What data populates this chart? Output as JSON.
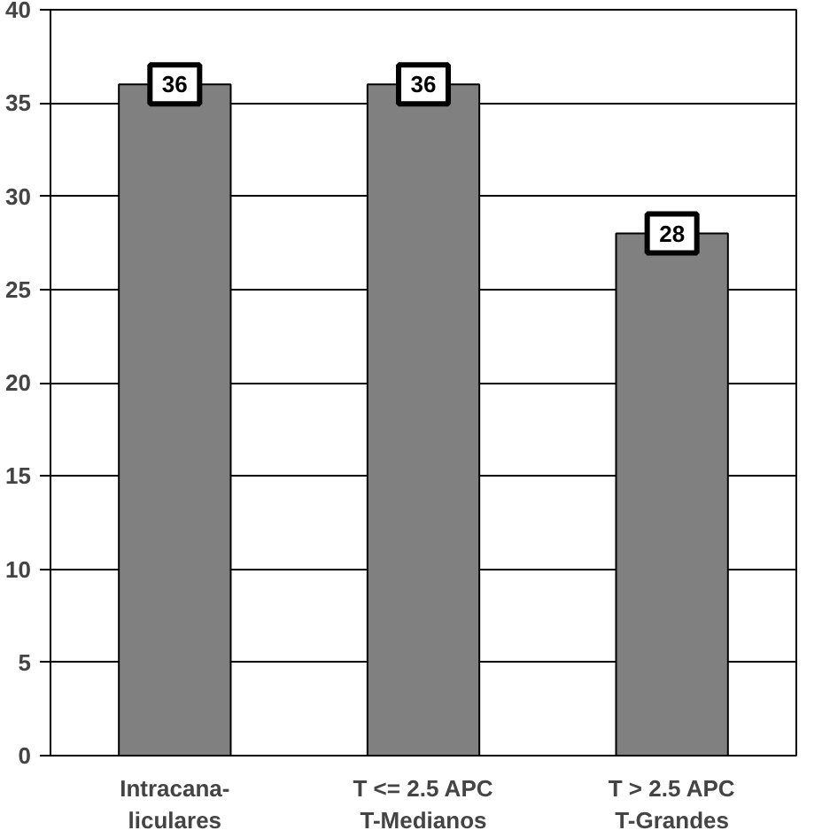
{
  "chart_data": {
    "type": "bar",
    "categories": [
      "Intracana-\nliculares",
      "T <= 2.5 APC\nT-Medianos",
      "T > 2.5 APC\nT-Grandes"
    ],
    "values": [
      36,
      36,
      28
    ],
    "color": "#808080",
    "ylim": [
      0,
      40
    ],
    "yticks": [
      0,
      5,
      10,
      15,
      20,
      25,
      30,
      35,
      40
    ],
    "grid": "y",
    "data_labels": true
  }
}
